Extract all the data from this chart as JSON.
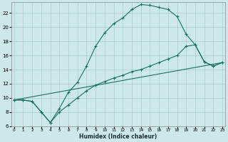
{
  "xlabel": "Humidex (Indice chaleur)",
  "background_color": "#cce8e8",
  "grid_color": "#aacccc",
  "line_color": "#1a7060",
  "curve_main": {
    "x": [
      0,
      1,
      2,
      3,
      4,
      5,
      6,
      7,
      8,
      9,
      10,
      11,
      12,
      13,
      14,
      15,
      16,
      17,
      18,
      19,
      20,
      21,
      22,
      23
    ],
    "y": [
      9.7,
      9.7,
      9.5,
      8.0,
      6.5,
      8.5,
      10.8,
      12.2,
      14.5,
      17.3,
      19.2,
      20.5,
      21.3,
      22.5,
      23.2,
      23.1,
      22.8,
      22.5,
      21.5,
      19.0,
      17.5,
      15.1,
      14.5,
      15.0
    ]
  },
  "curve_lower": {
    "x": [
      0,
      1,
      2,
      3,
      4,
      5,
      6,
      7,
      8,
      9,
      10,
      11,
      12,
      13,
      14,
      15,
      16,
      17,
      18,
      19,
      20,
      21,
      22,
      23
    ],
    "y": [
      9.7,
      9.7,
      9.5,
      8.0,
      6.5,
      8.0,
      9.0,
      10.0,
      11.0,
      11.8,
      12.3,
      12.8,
      13.2,
      13.7,
      14.0,
      14.5,
      15.0,
      15.5,
      16.0,
      17.3,
      17.5,
      15.1,
      14.5,
      15.0
    ]
  },
  "line_diag": {
    "x": [
      0,
      23
    ],
    "y": [
      9.7,
      15.0
    ]
  },
  "ylim": [
    6,
    23.5
  ],
  "xlim": [
    -0.3,
    23.3
  ],
  "yticks": [
    6,
    8,
    10,
    12,
    14,
    16,
    18,
    20,
    22
  ],
  "xticks": [
    0,
    1,
    2,
    3,
    4,
    5,
    6,
    7,
    8,
    9,
    10,
    11,
    12,
    13,
    14,
    15,
    16,
    17,
    18,
    19,
    20,
    21,
    22,
    23
  ]
}
